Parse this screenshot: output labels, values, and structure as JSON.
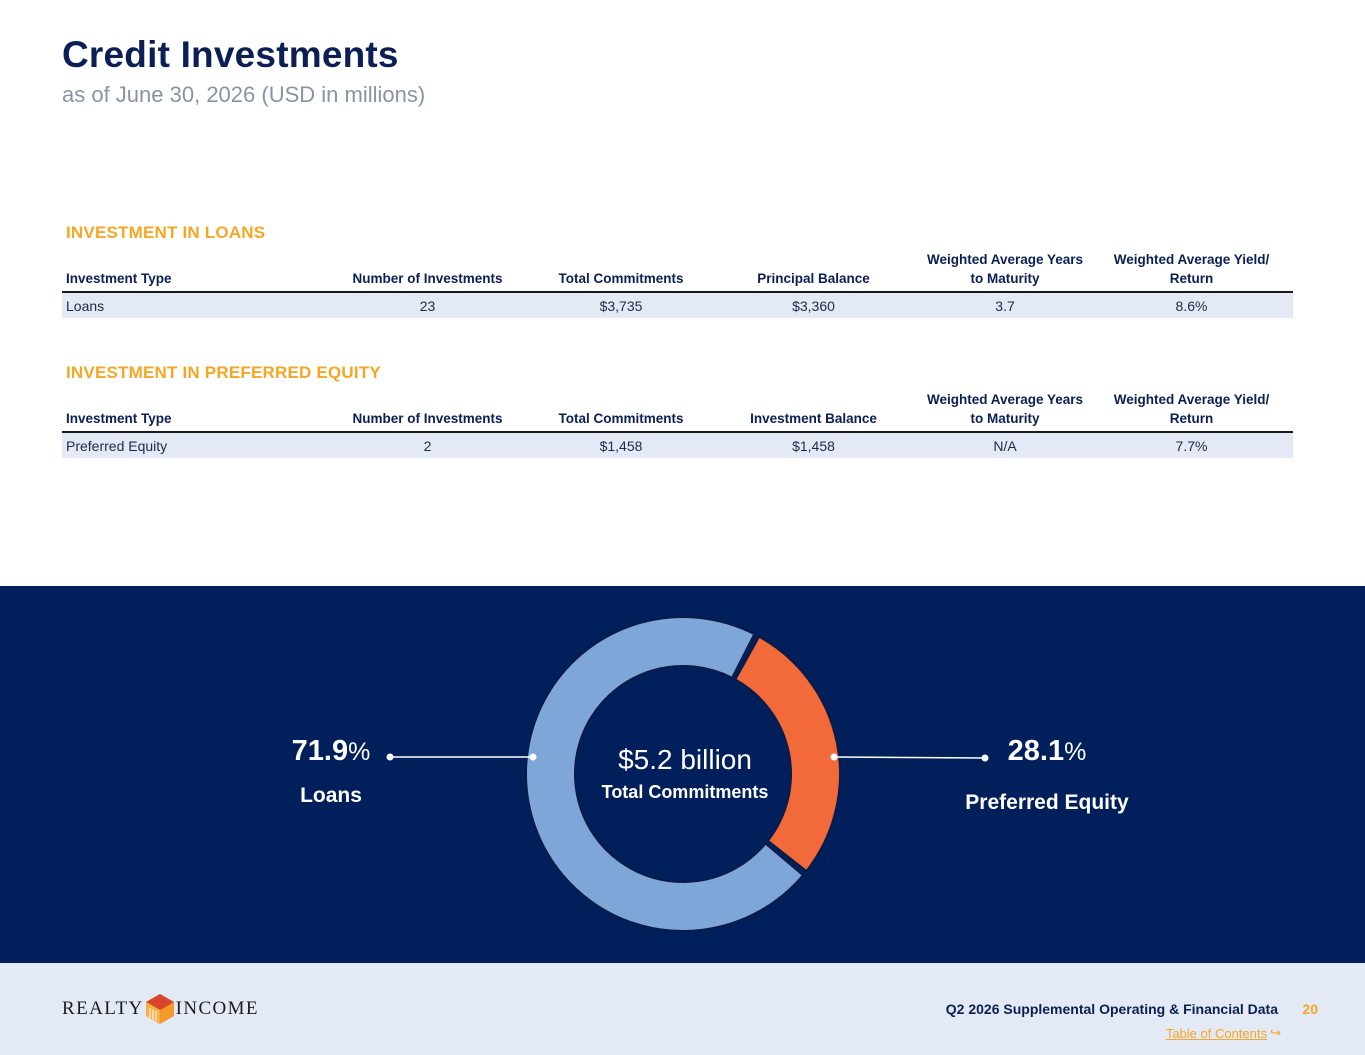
{
  "header": {
    "title": "Credit Investments",
    "subtitle": "as of June 30, 2026 (USD in millions)"
  },
  "loans_section": {
    "heading": "INVESTMENT IN LOANS",
    "columns": [
      "Investment Type",
      "Number of Investments",
      "Total Commitments",
      "Principal Balance",
      "Weighted Average Years to Maturity",
      "Weighted Average Yield/ Return"
    ],
    "row": [
      "Loans",
      "23",
      "$3,735",
      "$3,360",
      "3.7",
      "8.6%"
    ]
  },
  "preferred_section": {
    "heading": "INVESTMENT IN PREFERRED EQUITY",
    "columns": [
      "Investment Type",
      "Number of Investments",
      "Total Commitments",
      "Investment Balance",
      "Weighted Average Years to Maturity",
      "Weighted Average Yield/ Return"
    ],
    "row": [
      "Preferred Equity",
      "2",
      "$1,458",
      "$1,458",
      "N/A",
      "7.7%"
    ]
  },
  "chart_data": {
    "type": "pie",
    "variant": "donut",
    "center_value": "$5.2 billion",
    "center_label": "Total Commitments",
    "slices": [
      {
        "label": "Loans",
        "value": 71.9,
        "display": "71.9",
        "color": "#7ea6d8"
      },
      {
        "label": "Preferred Equity",
        "value": 28.1,
        "display": "28.1",
        "color": "#f26a3a"
      }
    ],
    "percent_symbol": "%"
  },
  "footer": {
    "logo_left": "REALTY",
    "logo_right": "INCOME",
    "document": "Q2 2026 Supplemental Operating & Financial Data",
    "page": "20",
    "toc_link": "Table of Contents",
    "toc_arrow": "↪"
  },
  "colors": {
    "navy": "#001f5b",
    "accent": "#f5a623",
    "loans": "#7ea6d8",
    "preferred": "#f26a3a"
  }
}
